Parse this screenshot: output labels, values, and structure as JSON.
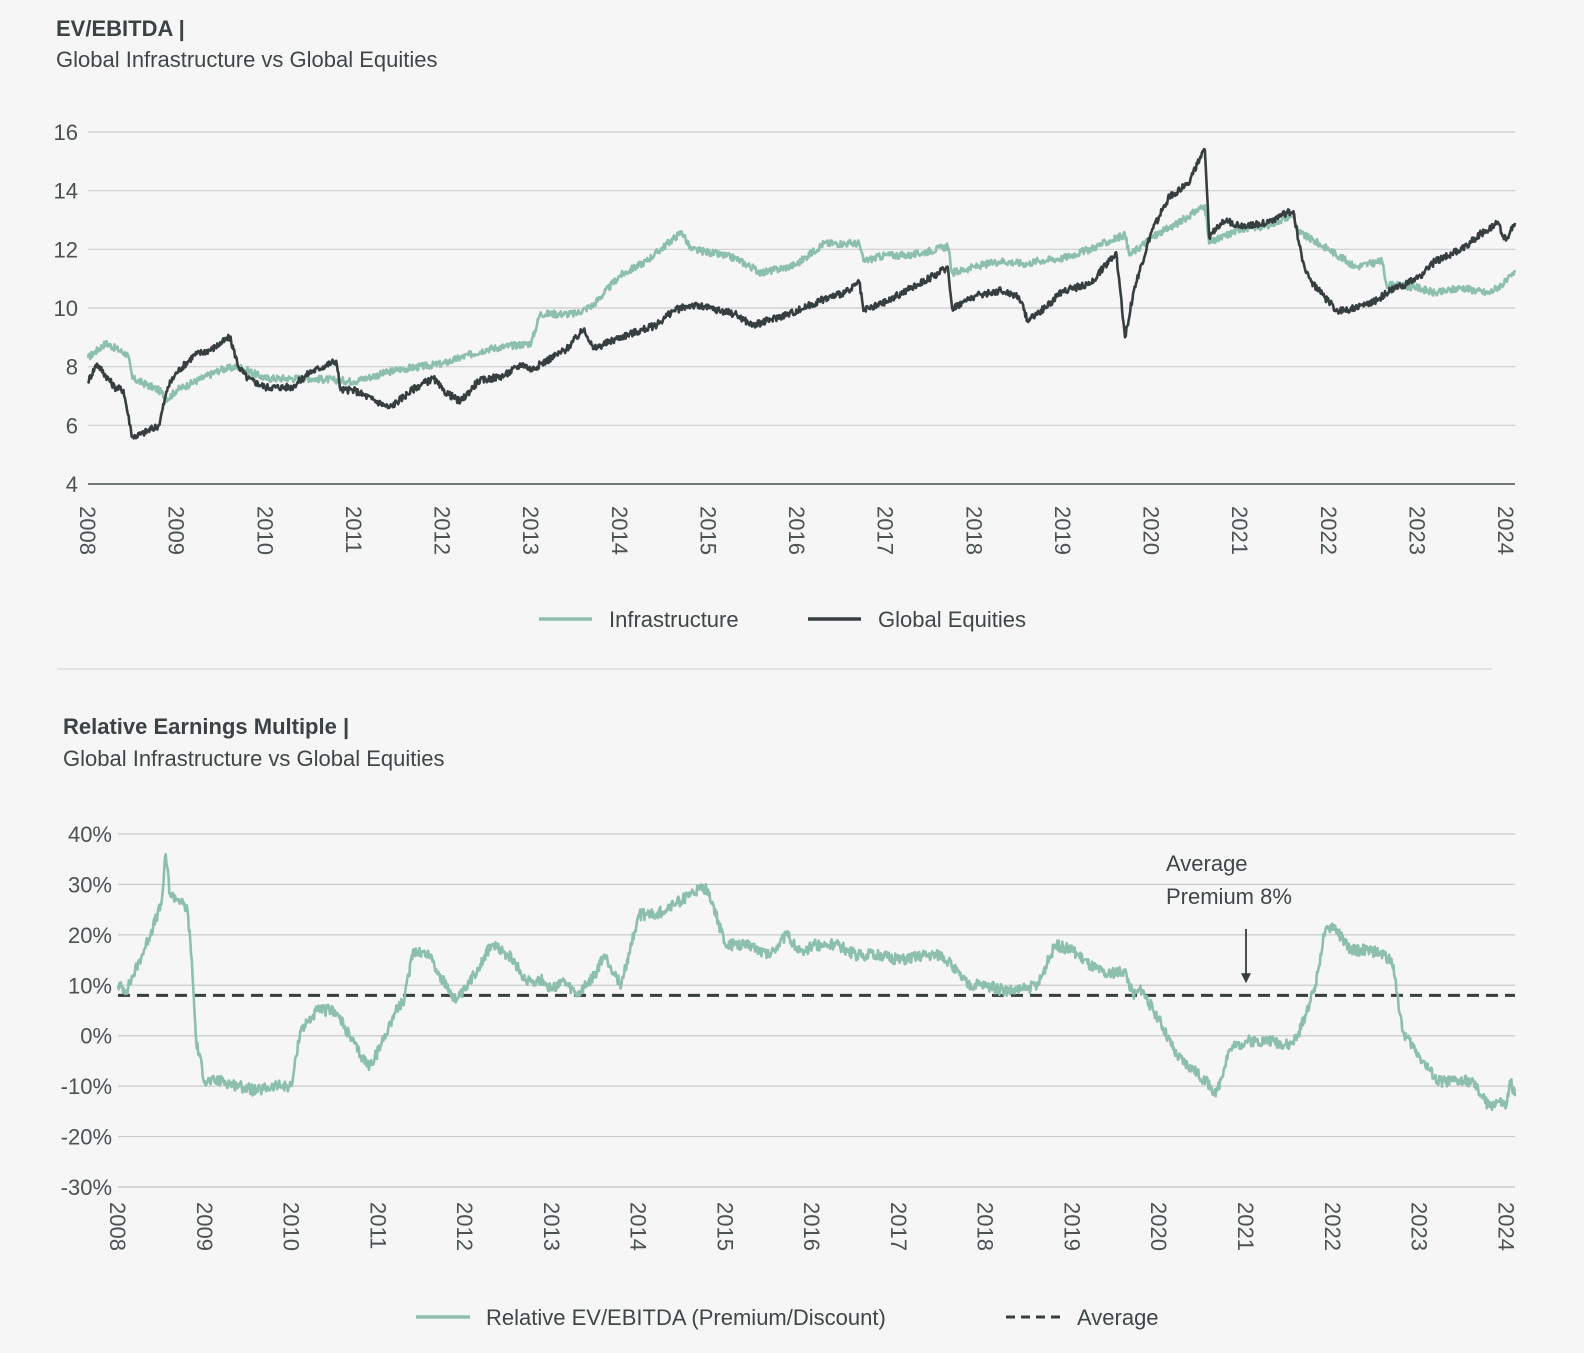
{
  "colors": {
    "infrastructure": "#8dbfad",
    "global_equities": "#363e40",
    "relative": "#8dbfad",
    "average": "#363e40",
    "grid": "#c9cccd",
    "background": "#f6f6f6"
  },
  "chart_data": [
    {
      "type": "line",
      "title": "EV/EBITDA |",
      "subtitle": "Global Infrastructure vs Global Equities",
      "xlabel": "",
      "ylabel": "",
      "xlim": [
        2008,
        2024.1
      ],
      "ylim": [
        4,
        16
      ],
      "yticks": [
        "4",
        "6",
        "8",
        "10",
        "12",
        "14",
        "16"
      ],
      "xticks": [
        "2008",
        "2009",
        "2010",
        "2011",
        "2012",
        "2013",
        "2014",
        "2015",
        "2016",
        "2017",
        "2018",
        "2019",
        "2020",
        "2021",
        "2022",
        "2023",
        "2024"
      ],
      "grid": true,
      "legend": "bottom-center",
      "series": [
        {
          "name": "Infrastructure",
          "x": [
            2008.0,
            2008.2,
            2008.45,
            2008.5,
            2008.8,
            2008.9,
            2009.0,
            2009.5,
            2009.7,
            2010.0,
            2010.5,
            2011.0,
            2011.5,
            2012.0,
            2012.5,
            2013.0,
            2013.1,
            2013.5,
            2013.7,
            2014.0,
            2014.3,
            2014.7,
            2014.8,
            2015.0,
            2015.3,
            2015.6,
            2015.9,
            2016.0,
            2016.3,
            2016.7,
            2016.75,
            2017.0,
            2017.3,
            2017.7,
            2017.75,
            2018.0,
            2018.3,
            2018.6,
            2018.7,
            2019.0,
            2019.3,
            2019.7,
            2019.75,
            2020.0,
            2020.3,
            2020.6,
            2020.65,
            2021.0,
            2021.3,
            2021.6,
            2021.65,
            2022.0,
            2022.3,
            2022.6,
            2022.65,
            2023.0,
            2023.2,
            2023.5,
            2023.8,
            2024.0,
            2024.1
          ],
          "y": [
            8.3,
            8.8,
            8.4,
            7.6,
            7.2,
            6.9,
            7.2,
            7.9,
            8.0,
            7.6,
            7.6,
            7.5,
            7.9,
            8.1,
            8.6,
            8.8,
            9.8,
            9.8,
            10.1,
            11.1,
            11.6,
            12.6,
            12.0,
            11.9,
            11.7,
            11.2,
            11.4,
            11.5,
            12.2,
            12.2,
            11.6,
            11.8,
            11.8,
            12.1,
            11.2,
            11.4,
            11.6,
            11.5,
            11.6,
            11.7,
            12.0,
            12.5,
            11.8,
            12.4,
            12.9,
            13.5,
            12.2,
            12.7,
            12.8,
            13.2,
            12.6,
            12.0,
            11.4,
            11.6,
            10.8,
            10.7,
            10.5,
            10.7,
            10.5,
            10.9,
            11.2
          ]
        },
        {
          "name": "Global Equities",
          "x": [
            2008.0,
            2008.1,
            2008.3,
            2008.4,
            2008.5,
            2008.6,
            2008.8,
            2008.9,
            2009.0,
            2009.2,
            2009.4,
            2009.6,
            2009.7,
            2009.8,
            2010.0,
            2010.3,
            2010.5,
            2010.8,
            2010.85,
            2011.0,
            2011.2,
            2011.4,
            2011.7,
            2011.9,
            2012.0,
            2012.2,
            2012.4,
            2012.7,
            2012.9,
            2013.0,
            2013.4,
            2013.6,
            2013.7,
            2014.0,
            2014.4,
            2014.6,
            2014.8,
            2015.0,
            2015.3,
            2015.5,
            2015.7,
            2015.9,
            2016.0,
            2016.3,
            2016.6,
            2016.7,
            2016.75,
            2017.0,
            2017.3,
            2017.6,
            2017.7,
            2017.75,
            2018.0,
            2018.3,
            2018.5,
            2018.6,
            2018.8,
            2019.0,
            2019.3,
            2019.6,
            2019.65,
            2019.7,
            2019.8,
            2020.0,
            2020.2,
            2020.4,
            2020.6,
            2020.65,
            2020.8,
            2021.0,
            2021.3,
            2021.5,
            2021.6,
            2021.7,
            2021.8,
            2022.0,
            2022.1,
            2022.3,
            2022.5,
            2022.7,
            2023.0,
            2023.2,
            2023.5,
            2023.7,
            2023.9,
            2024.0,
            2024.1
          ],
          "y": [
            7.5,
            8.1,
            7.3,
            7.2,
            5.6,
            5.7,
            6.0,
            7.3,
            7.8,
            8.4,
            8.6,
            9.0,
            8.0,
            7.6,
            7.3,
            7.3,
            7.8,
            8.2,
            7.2,
            7.2,
            6.9,
            6.6,
            7.3,
            7.6,
            7.2,
            6.8,
            7.5,
            7.7,
            8.1,
            7.9,
            8.6,
            9.3,
            8.6,
            9.0,
            9.4,
            9.9,
            10.1,
            10.0,
            9.8,
            9.4,
            9.6,
            9.8,
            9.9,
            10.3,
            10.6,
            10.9,
            9.9,
            10.2,
            10.7,
            11.2,
            11.4,
            10.0,
            10.4,
            10.6,
            10.4,
            9.6,
            10.0,
            10.6,
            10.8,
            11.9,
            10.5,
            9.0,
            10.6,
            12.6,
            13.8,
            14.2,
            15.4,
            12.4,
            13.0,
            12.8,
            12.9,
            13.2,
            13.3,
            11.6,
            10.9,
            10.2,
            9.9,
            10.0,
            10.2,
            10.6,
            11.0,
            11.6,
            12.0,
            12.5,
            12.9,
            12.3,
            12.9
          ]
        }
      ]
    },
    {
      "type": "line",
      "title": "Relative Earnings Multiple |",
      "subtitle": "Global Infrastructure vs Global Equities",
      "xlabel": "",
      "ylabel": "",
      "xlim": [
        2008,
        2024.1
      ],
      "ylim": [
        -30,
        40
      ],
      "yticks": [
        "-30%",
        "-20%",
        "-10%",
        "0%",
        "10%",
        "20%",
        "30%",
        "40%"
      ],
      "xticks": [
        "2008",
        "2009",
        "2010",
        "2011",
        "2012",
        "2013",
        "2014",
        "2015",
        "2016",
        "2017",
        "2018",
        "2019",
        "2020",
        "2021",
        "2022",
        "2023",
        "2024"
      ],
      "grid": true,
      "legend": "bottom-center",
      "annotation": {
        "line1": "Average",
        "line2": "Premium 8%",
        "x": 2021.0,
        "y": 10
      },
      "average": {
        "name": "Average",
        "value": 8
      },
      "series": [
        {
          "name": "Relative EV/EBITDA (Premium/Discount)",
          "x": [
            2008.0,
            2008.1,
            2008.3,
            2008.5,
            2008.55,
            2008.6,
            2008.7,
            2008.8,
            2008.85,
            2008.9,
            2009.0,
            2009.2,
            2009.4,
            2009.6,
            2009.8,
            2010.0,
            2010.1,
            2010.3,
            2010.5,
            2010.7,
            2010.8,
            2010.9,
            2011.0,
            2011.2,
            2011.3,
            2011.4,
            2011.6,
            2011.7,
            2011.9,
            2012.0,
            2012.3,
            2012.5,
            2012.7,
            2012.9,
            2013.0,
            2013.1,
            2013.3,
            2013.5,
            2013.6,
            2013.8,
            2014.0,
            2014.2,
            2014.4,
            2014.7,
            2014.8,
            2015.0,
            2015.3,
            2015.5,
            2015.7,
            2015.9,
            2016.0,
            2016.3,
            2016.5,
            2016.8,
            2017.0,
            2017.3,
            2017.5,
            2017.7,
            2017.8,
            2018.0,
            2018.2,
            2018.4,
            2018.6,
            2018.8,
            2019.0,
            2019.2,
            2019.4,
            2019.6,
            2019.7,
            2019.8,
            2020.0,
            2020.2,
            2020.4,
            2020.6,
            2020.65,
            2020.8,
            2021.0,
            2021.3,
            2021.5,
            2021.6,
            2021.8,
            2021.9,
            2022.0,
            2022.2,
            2022.4,
            2022.6,
            2022.7,
            2022.8,
            2023.0,
            2023.2,
            2023.4,
            2023.6,
            2023.8,
            2023.9,
            2024.0,
            2024.05,
            2024.1
          ],
          "y": [
            10,
            9,
            17,
            26,
            36,
            28,
            27,
            25,
            15,
            -1,
            -9,
            -9,
            -10,
            -11,
            -10,
            -10,
            1,
            5,
            5,
            -1,
            -4,
            -6,
            -3,
            5,
            7,
            17,
            16,
            12,
            7,
            9,
            18,
            16,
            11,
            11,
            9,
            11,
            8,
            12,
            16,
            10,
            24,
            24,
            26,
            29,
            29,
            18,
            18,
            16,
            20,
            16,
            18,
            18,
            16,
            16,
            15,
            16,
            16,
            12,
            10,
            10,
            9,
            9,
            10,
            18,
            17,
            14,
            12,
            13,
            8,
            9,
            3,
            -4,
            -7,
            -10,
            -12,
            -3,
            -1,
            -1,
            -2,
            0,
            10,
            20,
            22,
            17,
            17,
            16,
            14,
            1,
            -4,
            -9,
            -9,
            -9,
            -14,
            -13,
            -14,
            -9,
            -12
          ]
        }
      ]
    }
  ]
}
